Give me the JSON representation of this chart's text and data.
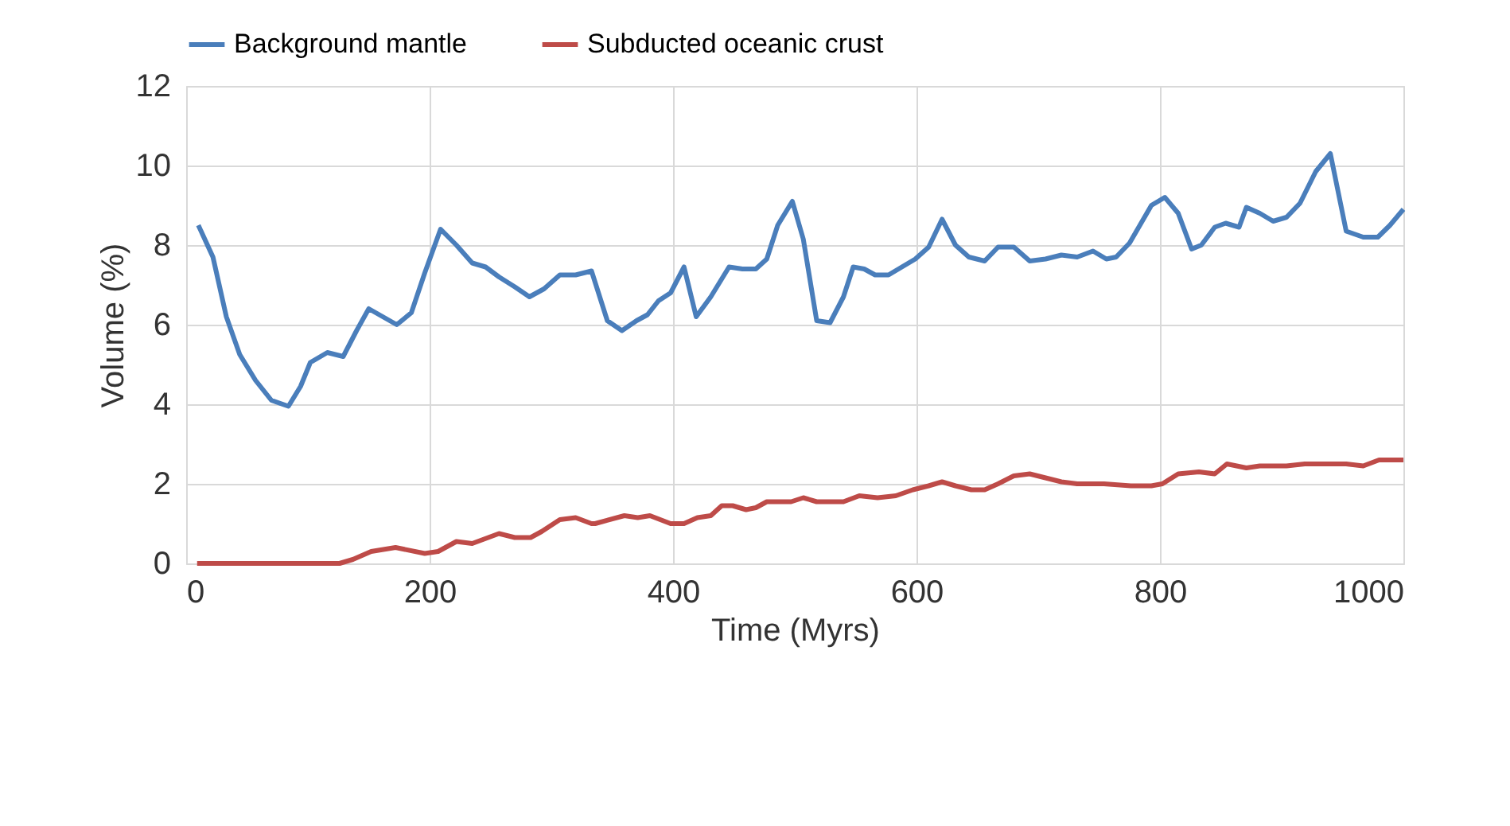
{
  "chart_data": {
    "type": "line",
    "xlabel": "Time (Myrs)",
    "ylabel": "Volume (%)",
    "xlim": [
      0,
      1000
    ],
    "xticks": [
      0,
      200,
      400,
      600,
      800,
      1000
    ],
    "ylim": [
      0,
      12
    ],
    "yticks": [
      0,
      2,
      4,
      6,
      8,
      10,
      12
    ],
    "grid": true,
    "legend": "top",
    "marker": "none",
    "line_style": "solid",
    "series": [
      {
        "name": "Background mantle",
        "color": "#4a7ebb",
        "x": [
          10,
          22,
          33,
          44,
          57,
          70,
          84,
          94,
          102,
          116,
          129,
          140,
          150,
          173,
          185,
          196,
          209,
          222,
          235,
          246,
          257,
          270,
          282,
          294,
          307,
          320,
          333,
          346,
          358,
          370,
          379,
          388,
          398,
          409,
          419,
          431,
          446,
          457,
          468,
          477,
          486,
          498,
          507,
          518,
          529,
          540,
          548,
          557,
          566,
          577,
          588,
          599,
          610,
          621,
          632,
          643,
          656,
          667,
          680,
          693,
          706,
          719,
          732,
          745,
          756,
          764,
          775,
          793,
          804,
          815,
          826,
          834,
          845,
          854,
          865,
          871,
          882,
          893,
          904,
          915,
          928,
          940,
          953,
          967,
          979,
          989,
          1000
        ],
        "values": [
          8.5,
          7.7,
          6.2,
          5.25,
          4.6,
          4.1,
          3.95,
          4.45,
          5.05,
          5.3,
          5.2,
          5.85,
          6.4,
          6.0,
          6.3,
          7.3,
          8.4,
          8.0,
          7.55,
          7.45,
          7.2,
          6.95,
          6.7,
          6.9,
          7.25,
          7.25,
          7.35,
          6.1,
          5.85,
          6.1,
          6.25,
          6.6,
          6.8,
          7.45,
          6.2,
          6.7,
          7.45,
          7.4,
          7.4,
          7.65,
          8.5,
          9.1,
          8.15,
          6.1,
          6.05,
          6.7,
          7.45,
          7.4,
          7.25,
          7.25,
          7.45,
          7.65,
          7.95,
          8.65,
          8.0,
          7.7,
          7.6,
          7.95,
          7.95,
          7.6,
          7.65,
          7.75,
          7.7,
          7.85,
          7.65,
          7.7,
          8.05,
          9.0,
          9.2,
          8.8,
          7.9,
          8.0,
          8.45,
          8.55,
          8.45,
          8.95,
          8.8,
          8.6,
          8.7,
          9.05,
          9.85,
          10.3,
          8.35,
          8.2,
          8.2,
          8.5,
          8.9
        ]
      },
      {
        "name": "Subducted oceanic crust",
        "color": "#be4b48",
        "x": [
          9,
          126,
          137,
          152,
          172,
          196,
          207,
          222,
          235,
          257,
          270,
          283,
          292,
          307,
          320,
          333,
          336,
          360,
          371,
          381,
          398,
          409,
          420,
          431,
          440,
          449,
          460,
          468,
          477,
          497,
          507,
          518,
          540,
          553,
          568,
          583,
          597,
          610,
          621,
          632,
          645,
          656,
          667,
          680,
          693,
          706,
          719,
          732,
          754,
          776,
          793,
          802,
          815,
          832,
          845,
          855,
          871,
          882,
          904,
          919,
          928,
          941,
          953,
          967,
          980,
          1000
        ],
        "values": [
          0,
          0,
          0.1,
          0.3,
          0.4,
          0.25,
          0.3,
          0.55,
          0.5,
          0.75,
          0.65,
          0.65,
          0.8,
          1.1,
          1.15,
          1.0,
          1.0,
          1.2,
          1.15,
          1.2,
          1.0,
          1.0,
          1.15,
          1.2,
          1.45,
          1.45,
          1.35,
          1.4,
          1.55,
          1.55,
          1.65,
          1.55,
          1.55,
          1.7,
          1.65,
          1.7,
          1.85,
          1.95,
          2.05,
          1.95,
          1.85,
          1.85,
          2.0,
          2.2,
          2.25,
          2.15,
          2.05,
          2.0,
          2.0,
          1.95,
          1.95,
          2.0,
          2.25,
          2.3,
          2.25,
          2.5,
          2.4,
          2.45,
          2.45,
          2.5,
          2.5,
          2.5,
          2.5,
          2.45,
          2.6,
          2.6
        ]
      }
    ]
  }
}
